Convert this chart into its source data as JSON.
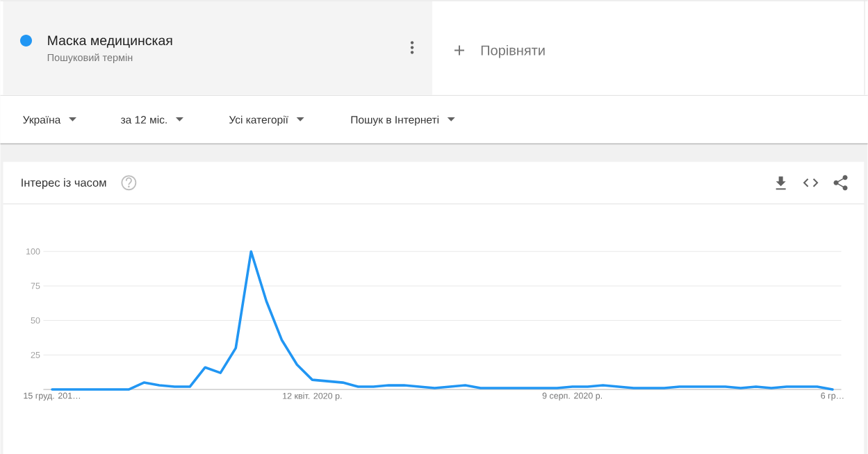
{
  "chart_data": {
    "type": "line",
    "title": "Інтерес із часом",
    "annotations": [
      "Пошуковий термін",
      "Порівняти",
      "Україна",
      "за 12 міс.",
      "Усі категорії",
      "Пошук в Інтернеті"
    ],
    "x": [
      "2019-12-15",
      "2019-12-22",
      "2019-12-29",
      "2020-01-05",
      "2020-01-12",
      "2020-01-19",
      "2020-01-26",
      "2020-02-02",
      "2020-02-09",
      "2020-02-16",
      "2020-02-23",
      "2020-03-01",
      "2020-03-08",
      "2020-03-15",
      "2020-03-22",
      "2020-03-29",
      "2020-04-05",
      "2020-04-12",
      "2020-04-19",
      "2020-04-26",
      "2020-05-03",
      "2020-05-10",
      "2020-05-17",
      "2020-05-24",
      "2020-05-31",
      "2020-06-07",
      "2020-06-14",
      "2020-06-21",
      "2020-06-28",
      "2020-07-05",
      "2020-07-12",
      "2020-07-19",
      "2020-07-26",
      "2020-08-02",
      "2020-08-09",
      "2020-08-16",
      "2020-08-23",
      "2020-08-30",
      "2020-09-06",
      "2020-09-13",
      "2020-09-20",
      "2020-09-27",
      "2020-10-04",
      "2020-10-11",
      "2020-10-18",
      "2020-10-25",
      "2020-11-01",
      "2020-11-08",
      "2020-11-15",
      "2020-11-22",
      "2020-11-29",
      "2020-12-06"
    ],
    "series": [
      {
        "name": "Маска медицинская",
        "color": "#2196f3",
        "values": [
          0,
          0,
          0,
          0,
          0,
          0,
          5,
          3,
          2,
          2,
          16,
          12,
          30,
          100,
          64,
          36,
          18,
          7,
          6,
          5,
          2,
          2,
          3,
          3,
          2,
          1,
          2,
          3,
          1,
          1,
          1,
          1,
          1,
          1,
          2,
          2,
          3,
          2,
          1,
          1,
          1,
          2,
          2,
          2,
          2,
          1,
          2,
          1,
          2,
          2,
          2,
          0
        ]
      }
    ],
    "xlim": [
      "2019-12-11",
      "2020-12-10"
    ],
    "xticks": [
      {
        "value": "2019-12-15",
        "label": "15 груд. 201…"
      },
      {
        "value": "2020-04-12",
        "label": "12 квіт. 2020 р."
      },
      {
        "value": "2020-08-09",
        "label": "9 серп. 2020 р."
      },
      {
        "value": "2020-12-06",
        "label": "6 гр…"
      }
    ],
    "ylim": [
      0,
      100
    ],
    "yticks": [
      {
        "value": 0,
        "label": null
      },
      25,
      50,
      75,
      100
    ],
    "grid": "y",
    "legend": "top left"
  }
}
